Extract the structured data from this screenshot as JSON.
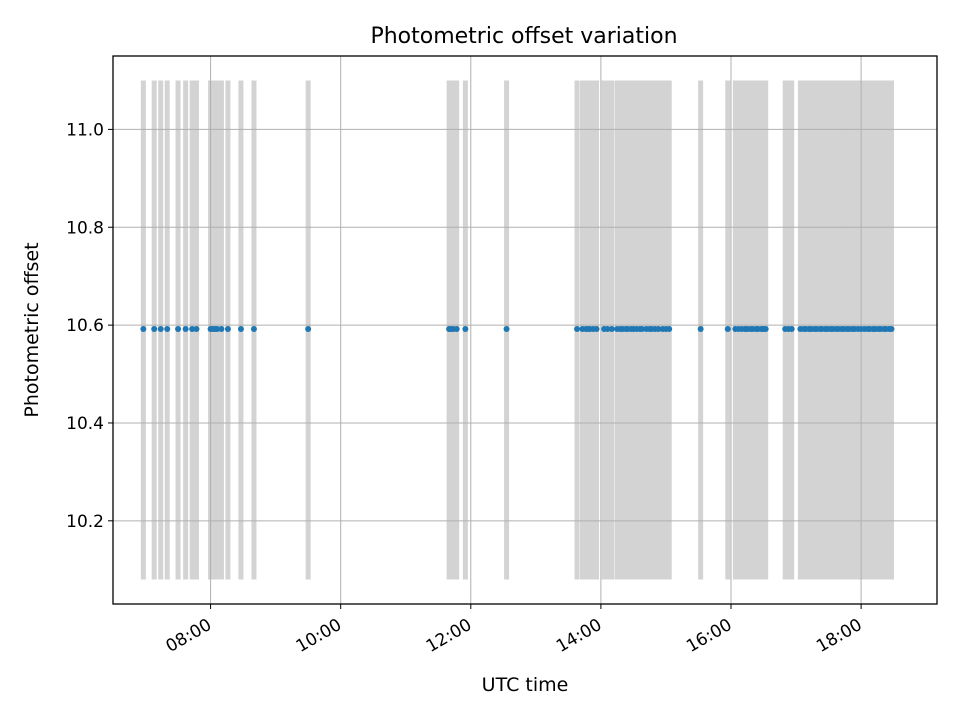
{
  "chart_data": {
    "type": "scatter",
    "title": "Photometric offset variation",
    "xlabel": "UTC time",
    "ylabel": "Photometric offset",
    "x_unit": "UTC hh:mm",
    "xlim": [
      "06:30",
      "19:10"
    ],
    "ylim": [
      10.03,
      11.15
    ],
    "x_ticks": [
      "08:00",
      "10:00",
      "12:00",
      "14:00",
      "16:00",
      "18:00"
    ],
    "y_ticks": [
      "10.2",
      "10.4",
      "10.6",
      "10.8",
      "11.0"
    ],
    "grid": true,
    "legend": "none",
    "colors": {
      "points": "#1f77b4",
      "error_bars": "#d3d3d3",
      "grid": "#b0b0b0",
      "axes": "#000000"
    },
    "error_bar_range": [
      10.08,
      11.1
    ],
    "series": [
      {
        "y": 10.592,
        "x": [
          "06:58",
          "07:08",
          "07:14",
          "07:20",
          "07:30",
          "07:37",
          "07:43",
          "07:47",
          "08:00",
          "08:02",
          "08:04",
          "08:06",
          "08:10",
          "08:16",
          "08:28",
          "08:40",
          "09:30",
          "11:40",
          "11:42",
          "11:44",
          "11:47",
          "11:55",
          "12:33",
          "13:38",
          "13:43",
          "13:46",
          "13:48",
          "13:50",
          "13:53",
          "13:56",
          "14:03",
          "14:06",
          "14:10",
          "14:15",
          "14:18",
          "14:20",
          "14:23",
          "14:25",
          "14:28",
          "14:30",
          "14:33",
          "14:36",
          "14:38",
          "14:42",
          "14:45",
          "14:47",
          "14:50",
          "14:53",
          "14:57",
          "15:00",
          "15:03",
          "15:32",
          "15:57",
          "16:04",
          "16:07",
          "16:10",
          "16:13",
          "16:15",
          "16:18",
          "16:20",
          "16:23",
          "16:25",
          "16:28",
          "16:30",
          "16:32",
          "16:50",
          "16:53",
          "16:56",
          "17:04",
          "17:07",
          "17:09",
          "17:12",
          "17:14",
          "17:17",
          "17:19",
          "17:22",
          "17:24",
          "17:27",
          "17:29",
          "17:32",
          "17:34",
          "17:37",
          "17:39",
          "17:42",
          "17:44",
          "17:47",
          "17:49",
          "17:52",
          "17:54",
          "17:57",
          "18:00",
          "18:03",
          "18:06",
          "18:08",
          "18:11",
          "18:13",
          "18:16",
          "18:18",
          "18:21",
          "18:23",
          "18:26",
          "18:28"
        ]
      }
    ]
  }
}
